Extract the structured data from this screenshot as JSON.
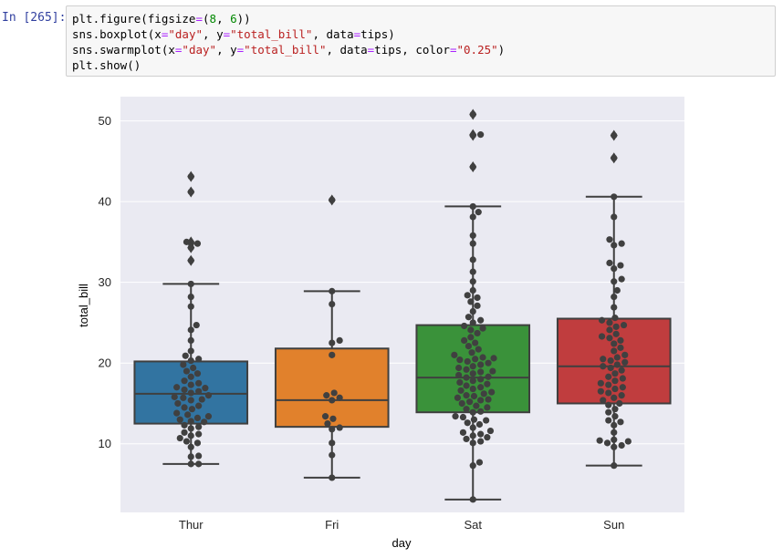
{
  "cell": {
    "prompt": "In [265]:",
    "code_lines": [
      [
        {
          "t": "plt.figure(figsize",
          "c": ""
        },
        {
          "t": "=",
          "c": "op"
        },
        {
          "t": "(",
          "c": ""
        },
        {
          "t": "8",
          "c": "num"
        },
        {
          "t": ", ",
          "c": ""
        },
        {
          "t": "6",
          "c": "num"
        },
        {
          "t": "))",
          "c": ""
        }
      ],
      [
        {
          "t": "sns.boxplot(x",
          "c": ""
        },
        {
          "t": "=",
          "c": "op"
        },
        {
          "t": "\"day\"",
          "c": "str"
        },
        {
          "t": ", y",
          "c": ""
        },
        {
          "t": "=",
          "c": "op"
        },
        {
          "t": "\"total_bill\"",
          "c": "str"
        },
        {
          "t": ", data",
          "c": ""
        },
        {
          "t": "=",
          "c": "op"
        },
        {
          "t": "tips)",
          "c": ""
        }
      ],
      [
        {
          "t": "sns.swarmplot(x",
          "c": ""
        },
        {
          "t": "=",
          "c": "op"
        },
        {
          "t": "\"day\"",
          "c": "str"
        },
        {
          "t": ", y",
          "c": ""
        },
        {
          "t": "=",
          "c": "op"
        },
        {
          "t": "\"total_bill\"",
          "c": "str"
        },
        {
          "t": ", data",
          "c": ""
        },
        {
          "t": "=",
          "c": "op"
        },
        {
          "t": "tips, color",
          "c": ""
        },
        {
          "t": "=",
          "c": "op"
        },
        {
          "t": "\"0.25\"",
          "c": "str"
        },
        {
          "t": ")",
          "c": ""
        }
      ],
      [
        {
          "t": "plt.show()",
          "c": ""
        }
      ]
    ]
  },
  "colors": {
    "axes_bg": "#eaeaf2",
    "grid": "#ffffff",
    "box_edge": "#3f3f3f",
    "swarm": "#404040",
    "text": "#262626"
  },
  "chart_data": {
    "type": "box",
    "overlay": "swarm",
    "xlabel": "day",
    "ylabel": "total_bill",
    "ylim": [
      1.5,
      53
    ],
    "yticks": [
      10,
      20,
      30,
      40,
      50
    ],
    "categories": [
      "Thur",
      "Fri",
      "Sat",
      "Sun"
    ],
    "box_colors": [
      "#3274a1",
      "#e1812c",
      "#3a923a",
      "#c03d3e"
    ],
    "boxes": [
      {
        "name": "Thur",
        "whislo": 7.5,
        "q1": 12.5,
        "med": 16.2,
        "q3": 20.2,
        "whishi": 29.8,
        "fliers": [
          32.7,
          34.3,
          34.8,
          35.0,
          41.2,
          43.1
        ]
      },
      {
        "name": "Fri",
        "whislo": 5.8,
        "q1": 12.1,
        "med": 15.4,
        "q3": 21.8,
        "whishi": 28.9,
        "fliers": [
          40.2
        ]
      },
      {
        "name": "Sat",
        "whislo": 3.1,
        "q1": 13.9,
        "med": 18.2,
        "q3": 24.7,
        "whishi": 39.4,
        "fliers": [
          44.3,
          48.2,
          48.3,
          50.8
        ]
      },
      {
        "name": "Sun",
        "whislo": 7.3,
        "q1": 15.0,
        "med": 19.6,
        "q3": 25.5,
        "whishi": 40.6,
        "fliers": [
          45.4,
          48.2
        ]
      }
    ],
    "swarm": [
      [
        7.5,
        7.5,
        8.4,
        8.5,
        9.6,
        10.1,
        10.3,
        10.7,
        11.0,
        11.2,
        11.4,
        11.9,
        12.1,
        12.3,
        12.7,
        12.8,
        13.0,
        13.2,
        13.4,
        13.6,
        13.8,
        14.3,
        14.5,
        14.7,
        15.0,
        15.4,
        15.5,
        15.7,
        15.8,
        16.0,
        16.3,
        16.5,
        16.7,
        16.9,
        17.0,
        17.3,
        17.5,
        17.8,
        18.3,
        18.7,
        19.0,
        19.4,
        19.8,
        20.3,
        20.5,
        20.9,
        21.5,
        22.8,
        24.1,
        24.7,
        27.0,
        28.2,
        29.8,
        32.7,
        34.3,
        34.8,
        35.0,
        41.2,
        43.1
      ],
      [
        5.8,
        8.6,
        10.1,
        11.8,
        12.0,
        12.5,
        13.1,
        13.4,
        15.4,
        15.7,
        16.0,
        16.3,
        21.0,
        22.5,
        22.8,
        27.3,
        28.9,
        40.2
      ],
      [
        3.1,
        7.3,
        7.7,
        10.1,
        10.3,
        10.6,
        10.8,
        11.0,
        11.2,
        11.4,
        11.6,
        12.0,
        12.4,
        12.6,
        12.9,
        13.0,
        13.3,
        13.4,
        13.9,
        14.0,
        14.3,
        14.5,
        14.7,
        15.0,
        15.2,
        15.4,
        15.5,
        15.7,
        15.9,
        16.0,
        16.2,
        16.4,
        16.6,
        16.8,
        17.0,
        17.2,
        17.4,
        17.6,
        17.8,
        18.0,
        18.2,
        18.3,
        18.5,
        18.7,
        18.9,
        19.0,
        19.2,
        19.4,
        19.6,
        19.8,
        20.0,
        20.2,
        20.4,
        20.5,
        20.6,
        20.7,
        21.0,
        21.3,
        21.7,
        22.1,
        22.5,
        22.8,
        23.2,
        23.7,
        24.1,
        24.3,
        24.6,
        25.0,
        25.3,
        25.7,
        26.4,
        27.1,
        27.6,
        28.1,
        28.4,
        29.0,
        30.1,
        31.3,
        32.8,
        34.8,
        35.8,
        38.1,
        38.7,
        39.4,
        44.3,
        48.2,
        48.3,
        50.8
      ],
      [
        7.3,
        9.6,
        9.8,
        10.1,
        10.3,
        10.4,
        10.5,
        11.4,
        12.3,
        12.7,
        12.9,
        13.4,
        13.9,
        14.3,
        14.8,
        15.0,
        15.4,
        15.7,
        16.0,
        16.3,
        16.5,
        16.8,
        17.0,
        17.3,
        17.5,
        17.8,
        18.1,
        18.3,
        18.7,
        19.1,
        19.4,
        19.6,
        19.8,
        20.1,
        20.3,
        20.5,
        20.7,
        21.0,
        21.5,
        21.9,
        22.4,
        22.8,
        23.1,
        23.3,
        23.6,
        24.1,
        24.5,
        24.7,
        25.0,
        25.3,
        25.6,
        26.9,
        28.2,
        29.0,
        30.1,
        30.4,
        31.7,
        32.1,
        32.4,
        34.6,
        34.8,
        35.3,
        38.1,
        40.6,
        45.4,
        48.2
      ]
    ]
  }
}
